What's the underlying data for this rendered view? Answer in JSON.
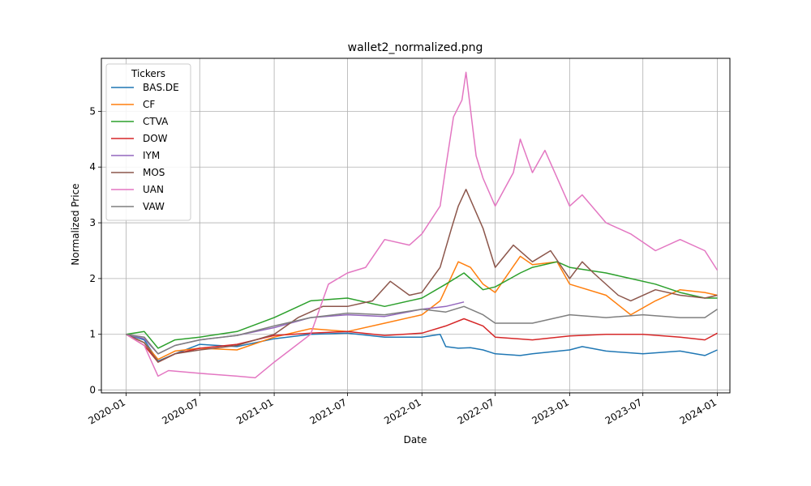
{
  "chart_data": {
    "type": "line",
    "title": "wallet2_normalized.png",
    "xlabel": "Date",
    "ylabel": "Normalized Price",
    "x_ticks": [
      "2020-01",
      "2020-07",
      "2021-01",
      "2021-07",
      "2022-01",
      "2022-07",
      "2023-01",
      "2023-07",
      "2024-01"
    ],
    "y_ticks": [
      "0",
      "1",
      "2",
      "3",
      "4",
      "5"
    ],
    "x_range": [
      "2019-11-01",
      "2024-02-01"
    ],
    "ylim": [
      -0.05,
      5.95
    ],
    "grid": true,
    "legend_title": "Tickers",
    "legend_position": "top-left",
    "series": [
      {
        "name": "BAS.DE",
        "color": "#1f77b4",
        "x": [
          "2020-01-01",
          "2020-02-15",
          "2020-03-20",
          "2020-05-01",
          "2020-07-01",
          "2020-10-01",
          "2021-01-01",
          "2021-04-01",
          "2021-07-01",
          "2021-10-01",
          "2022-01-01",
          "2022-02-15",
          "2022-03-01",
          "2022-04-01",
          "2022-05-01",
          "2022-06-01",
          "2022-07-01",
          "2022-09-01",
          "2022-10-01",
          "2023-01-01",
          "2023-02-01",
          "2023-04-01",
          "2023-07-01",
          "2023-10-01",
          "2023-12-01",
          "2024-01-01"
        ],
        "y": [
          1.0,
          0.9,
          0.52,
          0.65,
          0.82,
          0.78,
          0.92,
          1.0,
          1.02,
          0.95,
          0.95,
          1.0,
          0.78,
          0.75,
          0.76,
          0.72,
          0.65,
          0.62,
          0.65,
          0.72,
          0.78,
          0.7,
          0.65,
          0.7,
          0.62,
          0.72
        ]
      },
      {
        "name": "CF",
        "color": "#ff7f0e",
        "x": [
          "2020-01-01",
          "2020-02-15",
          "2020-03-20",
          "2020-05-01",
          "2020-07-01",
          "2020-10-01",
          "2021-01-01",
          "2021-04-01",
          "2021-07-01",
          "2021-10-01",
          "2022-01-01",
          "2022-02-15",
          "2022-04-01",
          "2022-05-01",
          "2022-06-01",
          "2022-07-01",
          "2022-09-01",
          "2022-10-01",
          "2022-12-01",
          "2023-01-01",
          "2023-04-01",
          "2023-06-01",
          "2023-08-01",
          "2023-10-01",
          "2023-12-01",
          "2024-01-01"
        ],
        "y": [
          1.0,
          0.85,
          0.55,
          0.7,
          0.75,
          0.72,
          0.95,
          1.1,
          1.05,
          1.2,
          1.35,
          1.6,
          2.3,
          2.2,
          1.9,
          1.75,
          2.4,
          2.25,
          2.3,
          1.9,
          1.7,
          1.35,
          1.6,
          1.8,
          1.75,
          1.7
        ]
      },
      {
        "name": "CTVA",
        "color": "#2ca02c",
        "x": [
          "2020-01-01",
          "2020-02-15",
          "2020-03-20",
          "2020-05-01",
          "2020-07-01",
          "2020-10-01",
          "2021-01-01",
          "2021-04-01",
          "2021-07-01",
          "2021-10-01",
          "2022-01-01",
          "2022-03-01",
          "2022-04-15",
          "2022-06-01",
          "2022-07-01",
          "2022-09-01",
          "2022-10-01",
          "2022-12-01",
          "2023-01-01",
          "2023-04-01",
          "2023-06-01",
          "2023-08-01",
          "2023-10-01",
          "2023-12-01",
          "2024-01-01"
        ],
        "y": [
          1.0,
          1.05,
          0.75,
          0.9,
          0.95,
          1.05,
          1.3,
          1.6,
          1.65,
          1.5,
          1.65,
          1.9,
          2.1,
          1.8,
          1.85,
          2.1,
          2.2,
          2.3,
          2.2,
          2.1,
          2.0,
          1.9,
          1.75,
          1.65,
          1.65
        ]
      },
      {
        "name": "DOW",
        "color": "#d62728",
        "x": [
          "2020-01-01",
          "2020-02-15",
          "2020-03-20",
          "2020-05-01",
          "2020-07-01",
          "2020-10-01",
          "2021-01-01",
          "2021-04-01",
          "2021-07-01",
          "2021-10-01",
          "2022-01-01",
          "2022-03-01",
          "2022-04-15",
          "2022-06-01",
          "2022-07-01",
          "2022-10-01",
          "2023-01-01",
          "2023-04-01",
          "2023-07-01",
          "2023-10-01",
          "2023-12-01",
          "2024-01-01"
        ],
        "y": [
          1.0,
          0.8,
          0.5,
          0.65,
          0.75,
          0.82,
          0.98,
          1.02,
          1.05,
          0.98,
          1.02,
          1.15,
          1.28,
          1.15,
          0.95,
          0.9,
          0.97,
          1.0,
          1.0,
          0.95,
          0.9,
          1.02
        ]
      },
      {
        "name": "IYM",
        "color": "#9467bd",
        "x": [
          "2020-01-01",
          "2020-02-15",
          "2020-03-20",
          "2020-05-01",
          "2020-07-01",
          "2020-10-01",
          "2021-01-01",
          "2021-04-01",
          "2021-07-01",
          "2021-10-01",
          "2022-01-01",
          "2022-03-01",
          "2022-04-15"
        ],
        "y": [
          1.0,
          0.92,
          0.65,
          0.8,
          0.9,
          0.98,
          1.12,
          1.3,
          1.35,
          1.32,
          1.45,
          1.5,
          1.58
        ]
      },
      {
        "name": "MOS",
        "color": "#8c564b",
        "x": [
          "2020-01-01",
          "2020-02-15",
          "2020-03-20",
          "2020-05-01",
          "2020-07-01",
          "2020-10-01",
          "2021-01-01",
          "2021-03-01",
          "2021-05-01",
          "2021-07-01",
          "2021-09-01",
          "2021-10-15",
          "2021-12-01",
          "2022-01-01",
          "2022-02-15",
          "2022-03-15",
          "2022-04-01",
          "2022-04-20",
          "2022-06-01",
          "2022-07-01",
          "2022-08-15",
          "2022-10-01",
          "2022-11-15",
          "2023-01-01",
          "2023-02-01",
          "2023-03-01",
          "2023-05-01",
          "2023-06-01",
          "2023-08-01",
          "2023-10-01",
          "2023-12-01",
          "2024-01-01"
        ],
        "y": [
          1.0,
          0.85,
          0.5,
          0.65,
          0.72,
          0.8,
          1.0,
          1.3,
          1.5,
          1.5,
          1.6,
          1.95,
          1.7,
          1.75,
          2.2,
          2.9,
          3.3,
          3.6,
          2.9,
          2.2,
          2.6,
          2.3,
          2.5,
          2.0,
          2.3,
          2.1,
          1.7,
          1.6,
          1.8,
          1.7,
          1.65,
          1.7
        ]
      },
      {
        "name": "UAN",
        "color": "#e377c2",
        "x": [
          "2020-01-01",
          "2020-02-15",
          "2020-03-20",
          "2020-04-15",
          "2020-07-01",
          "2020-10-01",
          "2020-11-15",
          "2021-01-01",
          "2021-04-01",
          "2021-05-15",
          "2021-07-01",
          "2021-08-15",
          "2021-10-01",
          "2021-12-01",
          "2022-01-01",
          "2022-02-15",
          "2022-03-01",
          "2022-03-20",
          "2022-04-10",
          "2022-04-20",
          "2022-05-15",
          "2022-06-01",
          "2022-07-01",
          "2022-08-15",
          "2022-09-01",
          "2022-10-01",
          "2022-11-01",
          "2023-01-01",
          "2023-02-01",
          "2023-04-01",
          "2023-06-01",
          "2023-08-01",
          "2023-10-01",
          "2023-12-01",
          "2024-01-01"
        ],
        "y": [
          1.0,
          0.8,
          0.25,
          0.35,
          0.3,
          0.25,
          0.22,
          0.5,
          1.0,
          1.9,
          2.1,
          2.2,
          2.7,
          2.6,
          2.8,
          3.3,
          4.0,
          4.9,
          5.2,
          5.7,
          4.2,
          3.8,
          3.3,
          3.9,
          4.5,
          3.9,
          4.3,
          3.3,
          3.5,
          3.0,
          2.8,
          2.5,
          2.7,
          2.5,
          2.15
        ]
      },
      {
        "name": "VAW",
        "color": "#7f7f7f",
        "x": [
          "2020-01-01",
          "2020-02-15",
          "2020-03-20",
          "2020-05-01",
          "2020-07-01",
          "2020-10-01",
          "2021-01-01",
          "2021-04-01",
          "2021-07-01",
          "2021-10-01",
          "2022-01-01",
          "2022-03-01",
          "2022-04-15",
          "2022-06-01",
          "2022-07-01",
          "2022-10-01",
          "2023-01-01",
          "2023-04-01",
          "2023-07-01",
          "2023-10-01",
          "2023-12-01",
          "2024-01-01"
        ],
        "y": [
          1.0,
          0.95,
          0.65,
          0.8,
          0.9,
          0.98,
          1.15,
          1.3,
          1.38,
          1.35,
          1.45,
          1.4,
          1.5,
          1.35,
          1.2,
          1.2,
          1.35,
          1.3,
          1.35,
          1.3,
          1.3,
          1.45
        ]
      }
    ]
  }
}
